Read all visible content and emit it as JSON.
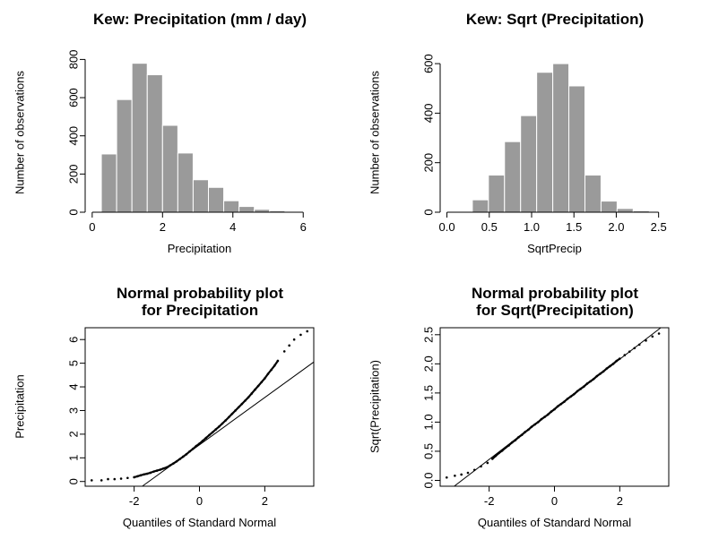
{
  "figure": {
    "background": "#ffffff",
    "text_color": "#000000"
  },
  "chart_data": [
    {
      "id": "hist-precipitation",
      "type": "bar",
      "title_lines": [
        "Kew: Precipitation (mm / day)"
      ],
      "xlabel": "Precipitation",
      "ylabel": "Number of observations",
      "xlim": [
        -0.2,
        6.3
      ],
      "ylim": [
        0,
        830
      ],
      "xtick_vals": [
        0,
        2,
        4,
        6
      ],
      "xtick_labels": [
        "0",
        "2",
        "4",
        "6"
      ],
      "ytick_vals": [
        0,
        200,
        400,
        600,
        800
      ],
      "ytick_labels": [
        "0",
        "200",
        "400",
        "600",
        "800"
      ],
      "bins": {
        "start": 0.26,
        "width": 0.435
      },
      "values": [
        305,
        590,
        780,
        720,
        455,
        310,
        170,
        130,
        60,
        30,
        15,
        8
      ],
      "bar_color": "#9a9a9a",
      "bar_border": "#ffffff"
    },
    {
      "id": "hist-sqrt-precipitation",
      "type": "bar",
      "title_lines": [
        "Kew: Sqrt (Precipitation)"
      ],
      "xlabel": "SqrtPrecip",
      "ylabel": "Number of observations",
      "xlim": [
        -0.08,
        2.62
      ],
      "ylim": [
        0,
        640
      ],
      "xtick_vals": [
        0.0,
        0.5,
        1.0,
        1.5,
        2.0,
        2.5
      ],
      "xtick_labels": [
        "0.0",
        "0.5",
        "1.0",
        "1.5",
        "2.0",
        "2.5"
      ],
      "ytick_vals": [
        0,
        200,
        400,
        600
      ],
      "ytick_labels": [
        "0",
        "200",
        "400",
        "600"
      ],
      "bins": {
        "start": 0.3,
        "width": 0.19
      },
      "values": [
        50,
        150,
        285,
        390,
        565,
        600,
        510,
        150,
        45,
        15,
        6
      ],
      "bar_color": "#9a9a9a",
      "bar_border": "#ffffff"
    },
    {
      "id": "qq-precipitation",
      "type": "scatter",
      "title_lines": [
        "Normal probability plot",
        "for Precipitation"
      ],
      "xlabel": "Quantiles of Standard Normal",
      "ylabel": "Precipitation",
      "xlim": [
        -3.5,
        3.5
      ],
      "ylim": [
        -0.2,
        6.5
      ],
      "xtick_vals": [
        -2,
        0,
        2
      ],
      "xtick_labels": [
        "-2",
        "0",
        "2"
      ],
      "ytick_vals": [
        0,
        1,
        2,
        3,
        4,
        5,
        6
      ],
      "ytick_labels": [
        "0",
        "1",
        "2",
        "3",
        "4",
        "5",
        "6"
      ],
      "point_color": "#000000",
      "ref_line": {
        "slope": 1.0,
        "intercept": 1.55,
        "color": "#000000"
      },
      "points": [
        [
          -3.3,
          0.05
        ],
        [
          -3.0,
          0.05
        ],
        [
          -2.8,
          0.1
        ],
        [
          -2.6,
          0.1
        ],
        [
          -2.4,
          0.12
        ],
        [
          -2.2,
          0.15
        ],
        [
          -2.0,
          0.18
        ],
        [
          -1.9,
          0.22
        ],
        [
          -1.8,
          0.26
        ],
        [
          -1.7,
          0.3
        ],
        [
          -1.6,
          0.33
        ],
        [
          -1.5,
          0.37
        ],
        [
          -1.4,
          0.42
        ],
        [
          -1.3,
          0.46
        ],
        [
          -1.2,
          0.5
        ],
        [
          -1.1,
          0.55
        ],
        [
          -1.0,
          0.6
        ],
        [
          -0.9,
          0.68
        ],
        [
          -0.8,
          0.76
        ],
        [
          -0.7,
          0.85
        ],
        [
          -0.6,
          0.95
        ],
        [
          -0.5,
          1.05
        ],
        [
          -0.4,
          1.15
        ],
        [
          -0.3,
          1.27
        ],
        [
          -0.2,
          1.38
        ],
        [
          -0.1,
          1.5
        ],
        [
          0.0,
          1.6
        ],
        [
          0.1,
          1.72
        ],
        [
          0.2,
          1.84
        ],
        [
          0.3,
          1.96
        ],
        [
          0.4,
          2.08
        ],
        [
          0.5,
          2.2
        ],
        [
          0.6,
          2.32
        ],
        [
          0.7,
          2.45
        ],
        [
          0.8,
          2.58
        ],
        [
          0.9,
          2.72
        ],
        [
          1.0,
          2.86
        ],
        [
          1.1,
          3.0
        ],
        [
          1.2,
          3.14
        ],
        [
          1.3,
          3.28
        ],
        [
          1.4,
          3.42
        ],
        [
          1.5,
          3.56
        ],
        [
          1.6,
          3.72
        ],
        [
          1.7,
          3.88
        ],
        [
          1.8,
          4.04
        ],
        [
          1.9,
          4.2
        ],
        [
          2.0,
          4.36
        ],
        [
          2.1,
          4.55
        ],
        [
          2.2,
          4.72
        ],
        [
          2.3,
          4.9
        ],
        [
          2.4,
          5.1
        ],
        [
          2.6,
          5.5
        ],
        [
          2.75,
          5.75
        ],
        [
          2.9,
          6.0
        ],
        [
          3.1,
          6.2
        ],
        [
          3.3,
          6.35
        ]
      ]
    },
    {
      "id": "qq-sqrt-precipitation",
      "type": "scatter",
      "title_lines": [
        "Normal probability plot",
        "for Sqrt(Precipitation)"
      ],
      "xlabel": "Quantiles of Standard Normal",
      "ylabel": "Sqrt(Precipitation)",
      "xlim": [
        -3.5,
        3.5
      ],
      "ylim": [
        -0.1,
        2.62
      ],
      "xtick_vals": [
        -2,
        0,
        2
      ],
      "xtick_labels": [
        "-2",
        "0",
        "2"
      ],
      "ytick_vals": [
        0.0,
        0.5,
        1.0,
        1.5,
        2.0,
        2.5
      ],
      "ytick_labels": [
        "0.0",
        "0.5",
        "1.0",
        "1.5",
        "2.0",
        "2.5"
      ],
      "point_color": "#000000",
      "ref_line": {
        "slope": 0.43,
        "intercept": 1.22,
        "color": "#000000"
      },
      "points": [
        [
          -3.3,
          0.05
        ],
        [
          -3.05,
          0.08
        ],
        [
          -2.85,
          0.1
        ],
        [
          -2.65,
          0.13
        ],
        [
          -2.45,
          0.18
        ],
        [
          -2.25,
          0.24
        ],
        [
          -2.05,
          0.3
        ],
        [
          -1.9,
          0.37
        ],
        [
          -1.8,
          0.42
        ],
        [
          -1.7,
          0.47
        ],
        [
          -1.6,
          0.51
        ],
        [
          -1.5,
          0.56
        ],
        [
          -1.4,
          0.6
        ],
        [
          -1.3,
          0.65
        ],
        [
          -1.2,
          0.69
        ],
        [
          -1.1,
          0.74
        ],
        [
          -1.0,
          0.78
        ],
        [
          -0.9,
          0.83
        ],
        [
          -0.8,
          0.87
        ],
        [
          -0.7,
          0.92
        ],
        [
          -0.6,
          0.96
        ],
        [
          -0.5,
          1.0
        ],
        [
          -0.4,
          1.05
        ],
        [
          -0.3,
          1.09
        ],
        [
          -0.2,
          1.13
        ],
        [
          -0.1,
          1.18
        ],
        [
          0.0,
          1.22
        ],
        [
          0.1,
          1.27
        ],
        [
          0.2,
          1.31
        ],
        [
          0.3,
          1.35
        ],
        [
          0.4,
          1.4
        ],
        [
          0.5,
          1.44
        ],
        [
          0.6,
          1.48
        ],
        [
          0.7,
          1.53
        ],
        [
          0.8,
          1.57
        ],
        [
          0.9,
          1.61
        ],
        [
          1.0,
          1.66
        ],
        [
          1.1,
          1.7
        ],
        [
          1.2,
          1.74
        ],
        [
          1.3,
          1.79
        ],
        [
          1.4,
          1.83
        ],
        [
          1.5,
          1.87
        ],
        [
          1.6,
          1.92
        ],
        [
          1.7,
          1.96
        ],
        [
          1.8,
          2.0
        ],
        [
          1.9,
          2.05
        ],
        [
          2.0,
          2.09
        ],
        [
          2.15,
          2.15
        ],
        [
          2.3,
          2.21
        ],
        [
          2.45,
          2.27
        ],
        [
          2.6,
          2.33
        ],
        [
          2.8,
          2.4
        ],
        [
          3.0,
          2.47
        ],
        [
          3.2,
          2.52
        ]
      ]
    }
  ]
}
